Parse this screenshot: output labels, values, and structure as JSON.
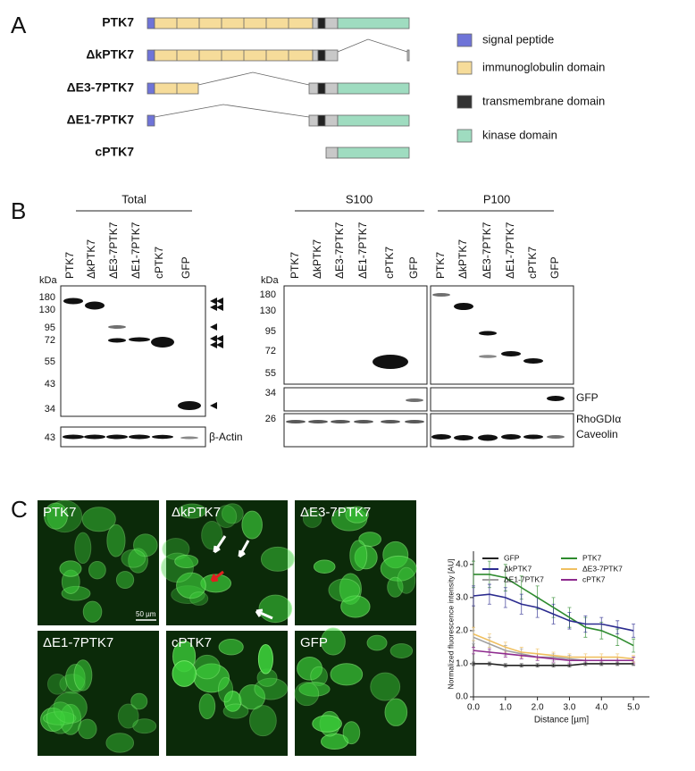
{
  "panels": {
    "A": {
      "label": "A",
      "constructs": [
        "PTK7",
        "ΔkPTK7",
        "ΔE3-7PTK7",
        "ΔE1-7PTK7",
        "cPTK7"
      ],
      "legend": [
        "signal peptide",
        "immunoglobulin domain",
        "transmembrane domain",
        "kinase domain"
      ]
    },
    "B": {
      "label": "B",
      "lanes": [
        "PTK7",
        "ΔkPTK7",
        "ΔE3-7PTK7",
        "ΔE1-7PTK7",
        "cPTK7",
        "GFP"
      ],
      "kda": "kDa",
      "total": {
        "title": "Total",
        "markers": [
          "180",
          "130",
          "95",
          "72",
          "55",
          "43",
          "34"
        ],
        "actin_marker": "43",
        "actin": "β-Actin"
      },
      "fractions": {
        "s100": "S100",
        "p100": "P100",
        "markers": [
          "180",
          "130",
          "95",
          "72",
          "55"
        ],
        "gfp_marker": "34",
        "rho_marker": "26",
        "gfp": "GFP",
        "rho": "RhoGDIα",
        "caveolin": "Caveolin"
      }
    },
    "C": {
      "label": "C",
      "images": [
        "PTK7",
        "ΔkPTK7",
        "ΔE3-7PTK7",
        "ΔE1-7PTK7",
        "cPTK7",
        "GFP"
      ],
      "scale_bar": "50 µm"
    }
  },
  "chart_data": {
    "type": "line",
    "x_label": "Distance [µm]",
    "y_label": "Normalized fluorescence intensity [AU]",
    "x": [
      0,
      0.5,
      1,
      1.5,
      2,
      2.5,
      3,
      3.5,
      4,
      4.5,
      5
    ],
    "xlim": [
      0,
      5.5
    ],
    "ylim": [
      0,
      4.4
    ],
    "xticks": [
      {
        "value": 0,
        "label": "0.0"
      },
      {
        "value": 1,
        "label": "1.0"
      },
      {
        "value": 2,
        "label": "2.0"
      },
      {
        "value": 3,
        "label": "3.0"
      },
      {
        "value": 4,
        "label": "4.0"
      },
      {
        "value": 5,
        "label": "5.0"
      }
    ],
    "yticks": [
      {
        "value": 0,
        "label": "0.0"
      },
      {
        "value": 1,
        "label": "1.0"
      },
      {
        "value": 2,
        "label": "2.0"
      },
      {
        "value": 3,
        "label": "3.0"
      },
      {
        "value": 4,
        "label": "4.0"
      }
    ],
    "series": [
      {
        "name": "GFP",
        "color": "#222222",
        "values": [
          1.0,
          1.0,
          0.95,
          0.95,
          0.95,
          0.95,
          0.95,
          1.0,
          1.0,
          1.0,
          1.0
        ],
        "errors": [
          0.05,
          0.05,
          0.05,
          0.05,
          0.05,
          0.05,
          0.05,
          0.05,
          0.05,
          0.05,
          0.05
        ]
      },
      {
        "name": "PTK7",
        "color": "#2e8b2e",
        "values": [
          3.7,
          3.7,
          3.6,
          3.3,
          3.0,
          2.7,
          2.4,
          2.1,
          2.0,
          1.8,
          1.55
        ],
        "errors": [
          0.4,
          0.4,
          0.4,
          0.35,
          0.35,
          0.3,
          0.3,
          0.3,
          0.25,
          0.25,
          0.2
        ]
      },
      {
        "name": "ΔkPTK7",
        "color": "#2b2b8f",
        "values": [
          3.05,
          3.1,
          3.0,
          2.8,
          2.7,
          2.5,
          2.3,
          2.2,
          2.2,
          2.1,
          2.0
        ],
        "errors": [
          0.3,
          0.3,
          0.3,
          0.3,
          0.3,
          0.3,
          0.25,
          0.25,
          0.2,
          0.2,
          0.2
        ]
      },
      {
        "name": "ΔE3-7PTK7",
        "color": "#f0c060",
        "values": [
          1.9,
          1.7,
          1.5,
          1.35,
          1.3,
          1.25,
          1.2,
          1.2,
          1.2,
          1.2,
          1.15
        ],
        "errors": [
          0.2,
          0.2,
          0.15,
          0.15,
          0.15,
          0.1,
          0.1,
          0.1,
          0.1,
          0.1,
          0.1
        ]
      },
      {
        "name": "ΔE1-7PTK7",
        "color": "#a0a0a0",
        "values": [
          1.8,
          1.6,
          1.4,
          1.3,
          1.2,
          1.2,
          1.15,
          1.1,
          1.1,
          1.1,
          1.1
        ],
        "errors": [
          0.2,
          0.2,
          0.15,
          0.15,
          0.1,
          0.1,
          0.1,
          0.1,
          0.1,
          0.1,
          0.1
        ]
      },
      {
        "name": "cPTK7",
        "color": "#8e2a8e",
        "values": [
          1.4,
          1.35,
          1.3,
          1.25,
          1.2,
          1.15,
          1.1,
          1.1,
          1.1,
          1.1,
          1.1
        ],
        "errors": [
          0.1,
          0.1,
          0.1,
          0.1,
          0.1,
          0.1,
          0.1,
          0.1,
          0.1,
          0.1,
          0.1
        ]
      }
    ]
  }
}
